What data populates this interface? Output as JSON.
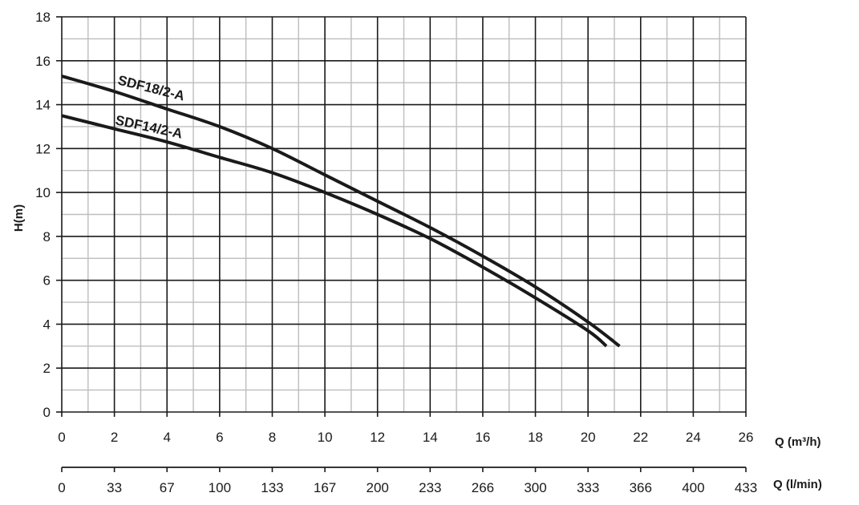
{
  "chart_data": {
    "type": "line",
    "ylabel": "H(m)",
    "xlabel": "Q (m³/h)",
    "xlabel_secondary": "Q (l/min)",
    "xlim": [
      0,
      26
    ],
    "ylim": [
      0,
      18
    ],
    "x_ticks": [
      "0",
      "2",
      "4",
      "6",
      "8",
      "10",
      "12",
      "14",
      "16",
      "18",
      "20",
      "22",
      "24",
      "26"
    ],
    "x_ticks_secondary": [
      "0",
      "33",
      "67",
      "100",
      "133",
      "167",
      "200",
      "233",
      "266",
      "300",
      "333",
      "366",
      "400",
      "433"
    ],
    "y_ticks": [
      "0",
      "2",
      "4",
      "6",
      "8",
      "10",
      "12",
      "14",
      "16",
      "18"
    ],
    "grid": true,
    "series": [
      {
        "name": "SDF18/2-A",
        "points": [
          [
            0,
            15.3
          ],
          [
            2,
            14.6
          ],
          [
            4,
            13.8
          ],
          [
            6,
            13.0
          ],
          [
            8,
            12.0
          ],
          [
            10,
            10.8
          ],
          [
            12,
            9.6
          ],
          [
            14,
            8.4
          ],
          [
            16,
            7.1
          ],
          [
            18,
            5.7
          ],
          [
            20,
            4.1
          ],
          [
            21.2,
            3.0
          ]
        ]
      },
      {
        "name": "SDF14/2-A",
        "points": [
          [
            0,
            13.5
          ],
          [
            2,
            12.9
          ],
          [
            4,
            12.3
          ],
          [
            6,
            11.6
          ],
          [
            8,
            10.9
          ],
          [
            10,
            10.0
          ],
          [
            12,
            9.0
          ],
          [
            14,
            7.9
          ],
          [
            16,
            6.6
          ],
          [
            18,
            5.2
          ],
          [
            20,
            3.7
          ],
          [
            20.7,
            3.0
          ]
        ]
      }
    ]
  }
}
